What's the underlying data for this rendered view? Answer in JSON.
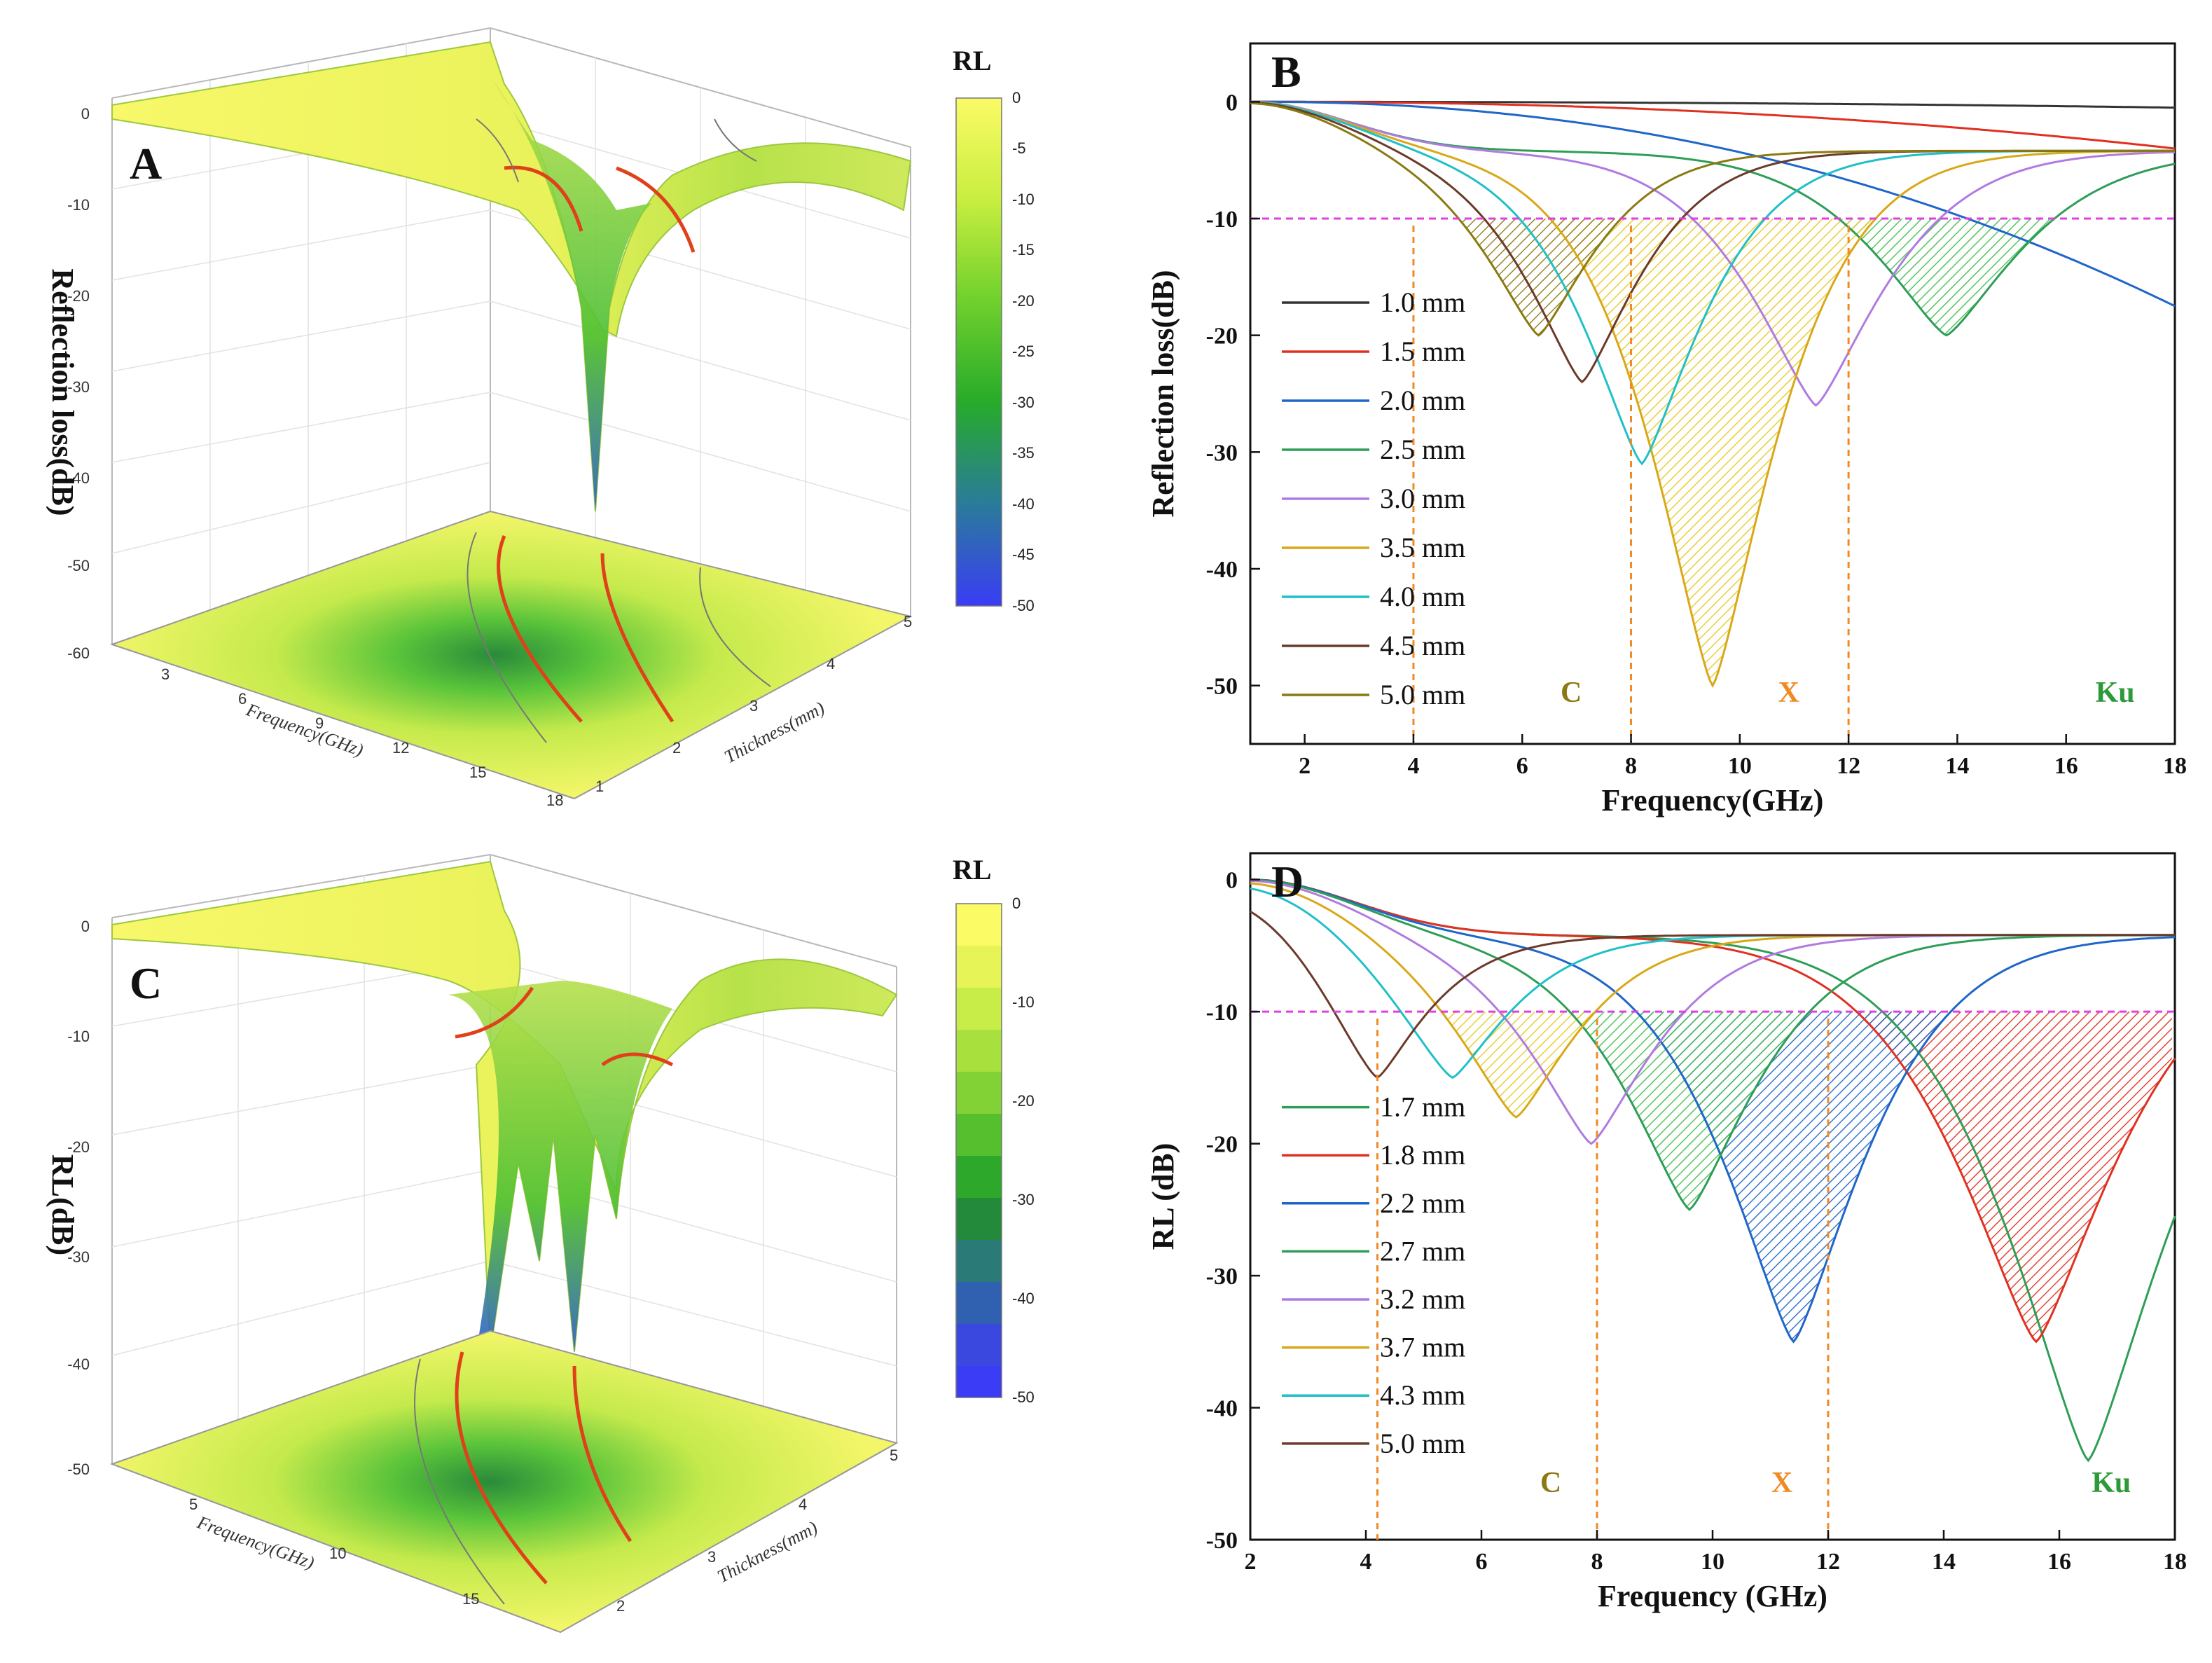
{
  "figure": {
    "panelA": {
      "letter": "A",
      "zlabel": "Reflection loss(dB)",
      "zticks": [
        "0",
        "-10",
        "-20",
        "-30",
        "-40",
        "-50",
        "-60"
      ],
      "xlabel": "Frequency(GHz)",
      "xticks": [
        "3",
        "6",
        "9",
        "12",
        "15",
        "18"
      ],
      "ylabel": "Thickness(mm)",
      "yticks": [
        "1",
        "2",
        "3",
        "4",
        "5"
      ],
      "colorbar": {
        "title": "RL",
        "ticks": [
          "0",
          "-5",
          "-10",
          "-15",
          "-20",
          "-25",
          "-30",
          "-35",
          "-40",
          "-45",
          "-50"
        ]
      }
    },
    "panelC": {
      "letter": "C",
      "zlabel": "RL(dB)",
      "zticks": [
        "0",
        "-10",
        "-20",
        "-30",
        "-40",
        "-50"
      ],
      "xlabel": "Frequency(GHz)",
      "xticks": [
        "5",
        "10",
        "15"
      ],
      "ylabel": "Thickness(mm)",
      "yticks": [
        "2",
        "3",
        "4",
        "5"
      ],
      "colorbar": {
        "title": "RL",
        "ticks": [
          "0",
          "-10",
          "-20",
          "-30",
          "-40",
          "-50"
        ]
      }
    }
  },
  "chart_data": [
    {
      "type": "line",
      "panel": "B",
      "title": "B",
      "xlabel": "Frequency(GHz)",
      "ylabel": "Reflection loss(dB)",
      "xlim": [
        1,
        18
      ],
      "ylim": [
        -55,
        5
      ],
      "xticks": [
        2,
        4,
        6,
        8,
        10,
        12,
        14,
        16,
        18
      ],
      "yticks": [
        0,
        -10,
        -20,
        -30,
        -40,
        -50
      ],
      "threshold": -10,
      "band_dividers": [
        4,
        8,
        12
      ],
      "band_labels": [
        {
          "text": "C",
          "x": 6.9,
          "color": "#8b7a14"
        },
        {
          "text": "X",
          "x": 10.9,
          "color": "#f08a24"
        },
        {
          "text": "Ku",
          "x": 16.9,
          "color": "#2d9a3a"
        }
      ],
      "legend_position": "bottom-left",
      "series": [
        {
          "name": "1.0 mm",
          "color": "#333333",
          "fmin": null,
          "rlmin": -0.5,
          "hatch": false
        },
        {
          "name": "1.5 mm",
          "color": "#e03020",
          "fmin": null,
          "rlmin": -4,
          "hatch": false
        },
        {
          "name": "2.0 mm",
          "color": "#1f66c9",
          "fmin": null,
          "rlmin": -17.5,
          "hatch": false
        },
        {
          "name": "2.5 mm",
          "color": "#2e9e57",
          "fmin": 13.8,
          "rlmin": -20,
          "hatch": true
        },
        {
          "name": "3.0 mm",
          "color": "#b07be0",
          "fmin": 11.4,
          "rlmin": -26,
          "hatch": false
        },
        {
          "name": "3.5 mm",
          "color": "#d9a818",
          "fmin": 9.5,
          "rlmin": -50,
          "hatch": true
        },
        {
          "name": "4.0 mm",
          "color": "#20c0c8",
          "fmin": 8.2,
          "rlmin": -31,
          "hatch": false
        },
        {
          "name": "4.5 mm",
          "color": "#6b3a2a",
          "fmin": 7.1,
          "rlmin": -24,
          "hatch": false
        },
        {
          "name": "5.0 mm",
          "color": "#8a7a10",
          "fmin": 6.3,
          "rlmin": -20,
          "hatch": true
        }
      ]
    },
    {
      "type": "line",
      "panel": "D",
      "title": "D",
      "xlabel": "Frequency (GHz)",
      "ylabel": "RL (dB)",
      "xlim": [
        2,
        18
      ],
      "ylim": [
        -50,
        2
      ],
      "xticks": [
        2,
        4,
        6,
        8,
        10,
        12,
        14,
        16,
        18
      ],
      "yticks": [
        0,
        -10,
        -20,
        -30,
        -40,
        -50
      ],
      "threshold": -10,
      "band_dividers": [
        4.2,
        8,
        12
      ],
      "band_labels": [
        {
          "text": "C",
          "x": 7.2,
          "color": "#8b7a14"
        },
        {
          "text": "X",
          "x": 11.2,
          "color": "#f08a24"
        },
        {
          "text": "Ku",
          "x": 16.9,
          "color": "#2d9a3a"
        }
      ],
      "legend_position": "bottom-left",
      "series": [
        {
          "name": "1.7 mm",
          "color": "#2e9e57",
          "fmin": 16.5,
          "rlmin": -44,
          "hatch": false
        },
        {
          "name": "1.8 mm",
          "color": "#e03020",
          "fmin": 15.6,
          "rlmin": -35,
          "hatch": true
        },
        {
          "name": "2.2 mm",
          "color": "#1f66c9",
          "fmin": 11.4,
          "rlmin": -35,
          "hatch": true
        },
        {
          "name": "2.7 mm",
          "color": "#2e9e57",
          "fmin": 9.6,
          "rlmin": -25,
          "hatch": true
        },
        {
          "name": "3.2 mm",
          "color": "#b07be0",
          "fmin": 7.9,
          "rlmin": -20,
          "hatch": false
        },
        {
          "name": "3.7 mm",
          "color": "#d9a818",
          "fmin": 6.6,
          "rlmin": -18,
          "hatch": true
        },
        {
          "name": "4.3 mm",
          "color": "#20c0c8",
          "fmin": 5.5,
          "rlmin": -15,
          "hatch": false
        },
        {
          "name": "5.0 mm",
          "color": "#6b3a2a",
          "fmin": 4.2,
          "rlmin": -15,
          "hatch": false
        }
      ]
    }
  ]
}
